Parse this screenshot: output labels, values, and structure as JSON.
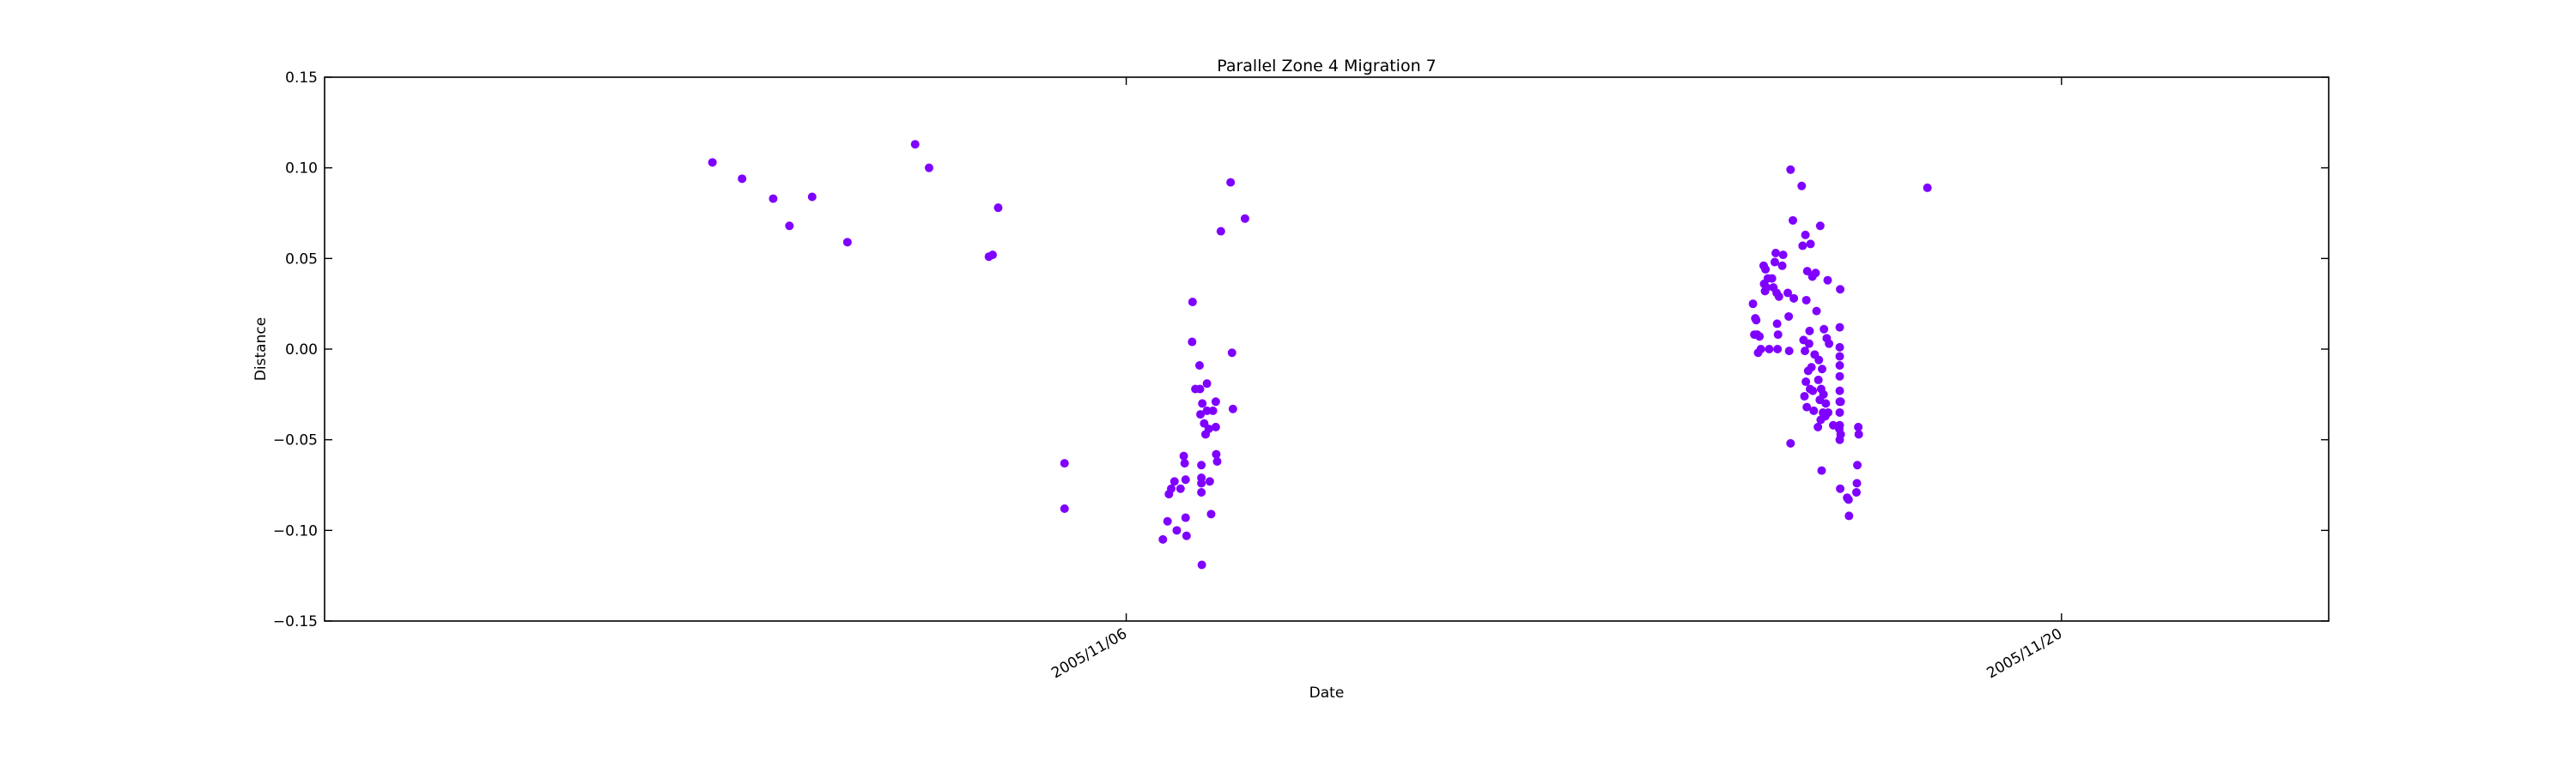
{
  "chart_data": {
    "type": "scatter",
    "title": "Parallel Zone 4 Migration 7",
    "xlabel": "Date",
    "ylabel": "Distance",
    "xlim": [
      "2005-10-25T00:00",
      "2005-11-24T00:00"
    ],
    "ylim": [
      -0.15,
      0.15
    ],
    "yticks": [
      -0.15,
      -0.1,
      -0.05,
      0.0,
      0.05,
      0.1,
      0.15
    ],
    "ytick_labels": [
      "−0.15",
      "−0.10",
      "−0.05",
      "0.00",
      "0.05",
      "0.10",
      "0.15"
    ],
    "xticks": [
      {
        "value": "2005-11-06T00:00",
        "label": "2005/11/06"
      },
      {
        "value": "2005-11-20T00:00",
        "label": "2005/11/20"
      }
    ],
    "grid": false,
    "marker_color": "#7f00ff",
    "points": [
      {
        "x": "2005-10-30T19:20",
        "y": 0.103
      },
      {
        "x": "2005-10-31T06:00",
        "y": 0.094
      },
      {
        "x": "2005-10-31T17:10",
        "y": 0.083
      },
      {
        "x": "2005-10-31T23:00",
        "y": 0.068
      },
      {
        "x": "2005-11-01T07:10",
        "y": 0.084
      },
      {
        "x": "2005-11-01T19:50",
        "y": 0.059
      },
      {
        "x": "2005-11-02T20:10",
        "y": 0.113
      },
      {
        "x": "2005-11-03T01:10",
        "y": 0.1
      },
      {
        "x": "2005-11-03T22:40",
        "y": 0.051
      },
      {
        "x": "2005-11-04T00:00",
        "y": 0.052
      },
      {
        "x": "2005-11-04T02:00",
        "y": 0.078
      },
      {
        "x": "2005-11-05T01:50",
        "y": -0.063
      },
      {
        "x": "2005-11-05T01:50",
        "y": -0.088
      },
      {
        "x": "2005-11-06T13:10",
        "y": -0.105
      },
      {
        "x": "2005-11-06T14:50",
        "y": -0.095
      },
      {
        "x": "2005-11-06T15:20",
        "y": -0.08
      },
      {
        "x": "2005-11-06T16:10",
        "y": -0.077
      },
      {
        "x": "2005-11-06T17:20",
        "y": -0.073
      },
      {
        "x": "2005-11-06T18:10",
        "y": -0.1
      },
      {
        "x": "2005-11-06T19:30",
        "y": -0.077
      },
      {
        "x": "2005-11-06T20:40",
        "y": -0.059
      },
      {
        "x": "2005-11-06T21:00",
        "y": -0.063
      },
      {
        "x": "2005-11-06T21:20",
        "y": -0.072
      },
      {
        "x": "2005-11-06T21:20",
        "y": -0.093
      },
      {
        "x": "2005-11-06T21:40",
        "y": -0.103
      },
      {
        "x": "2005-11-06T23:40",
        "y": 0.004
      },
      {
        "x": "2005-11-06T23:50",
        "y": 0.026
      },
      {
        "x": "2005-11-07T00:50",
        "y": -0.022
      },
      {
        "x": "2005-11-07T02:20",
        "y": -0.009
      },
      {
        "x": "2005-11-07T02:30",
        "y": -0.022
      },
      {
        "x": "2005-11-07T02:40",
        "y": -0.036
      },
      {
        "x": "2005-11-07T03:00",
        "y": -0.064
      },
      {
        "x": "2005-11-07T03:00",
        "y": -0.071
      },
      {
        "x": "2005-11-07T03:00",
        "y": -0.074
      },
      {
        "x": "2005-11-07T03:00",
        "y": -0.079
      },
      {
        "x": "2005-11-07T03:10",
        "y": -0.119
      },
      {
        "x": "2005-11-07T03:20",
        "y": -0.03
      },
      {
        "x": "2005-11-07T04:00",
        "y": -0.041
      },
      {
        "x": "2005-11-07T04:30",
        "y": -0.047
      },
      {
        "x": "2005-11-07T05:00",
        "y": -0.019
      },
      {
        "x": "2005-11-07T05:00",
        "y": -0.034
      },
      {
        "x": "2005-11-07T05:40",
        "y": -0.044
      },
      {
        "x": "2005-11-07T06:00",
        "y": -0.073
      },
      {
        "x": "2005-11-07T06:30",
        "y": -0.091
      },
      {
        "x": "2005-11-07T07:10",
        "y": -0.034
      },
      {
        "x": "2005-11-07T08:10",
        "y": -0.029
      },
      {
        "x": "2005-11-07T08:10",
        "y": -0.043
      },
      {
        "x": "2005-11-07T08:20",
        "y": -0.058
      },
      {
        "x": "2005-11-07T08:40",
        "y": -0.062
      },
      {
        "x": "2005-11-07T10:00",
        "y": 0.065
      },
      {
        "x": "2005-11-07T13:30",
        "y": 0.092
      },
      {
        "x": "2005-11-07T14:00",
        "y": -0.002
      },
      {
        "x": "2005-11-07T14:20",
        "y": -0.033
      },
      {
        "x": "2005-11-07T18:40",
        "y": 0.072
      },
      {
        "x": "2005-11-15T09:10",
        "y": 0.025
      },
      {
        "x": "2005-11-15T09:40",
        "y": 0.008
      },
      {
        "x": "2005-11-15T10:00",
        "y": 0.017
      },
      {
        "x": "2005-11-15T10:20",
        "y": 0.016
      },
      {
        "x": "2005-11-15T10:40",
        "y": 0.008
      },
      {
        "x": "2005-11-15T11:00",
        "y": -0.002
      },
      {
        "x": "2005-11-15T11:30",
        "y": 0.007
      },
      {
        "x": "2005-11-15T12:00",
        "y": 0.0
      },
      {
        "x": "2005-11-15T13:00",
        "y": 0.046
      },
      {
        "x": "2005-11-15T13:10",
        "y": 0.036
      },
      {
        "x": "2005-11-15T13:30",
        "y": 0.032
      },
      {
        "x": "2005-11-15T13:40",
        "y": 0.044
      },
      {
        "x": "2005-11-15T14:00",
        "y": 0.034
      },
      {
        "x": "2005-11-15T14:30",
        "y": 0.039
      },
      {
        "x": "2005-11-15T15:00",
        "y": 0.0
      },
      {
        "x": "2005-11-15T16:00",
        "y": 0.039
      },
      {
        "x": "2005-11-15T16:30",
        "y": 0.034
      },
      {
        "x": "2005-11-15T17:00",
        "y": 0.048
      },
      {
        "x": "2005-11-15T17:20",
        "y": 0.053
      },
      {
        "x": "2005-11-15T17:40",
        "y": 0.031
      },
      {
        "x": "2005-11-15T17:50",
        "y": 0.014
      },
      {
        "x": "2005-11-15T18:00",
        "y": 0.0
      },
      {
        "x": "2005-11-15T18:10",
        "y": 0.008
      },
      {
        "x": "2005-11-15T18:30",
        "y": 0.029
      },
      {
        "x": "2005-11-15T19:40",
        "y": 0.046
      },
      {
        "x": "2005-11-15T20:00",
        "y": 0.052
      },
      {
        "x": "2005-11-15T21:40",
        "y": 0.031
      },
      {
        "x": "2005-11-15T22:00",
        "y": 0.018
      },
      {
        "x": "2005-11-15T22:10",
        "y": -0.001
      },
      {
        "x": "2005-11-15T22:40",
        "y": -0.052
      },
      {
        "x": "2005-11-15T22:40",
        "y": 0.099
      },
      {
        "x": "2005-11-15T23:30",
        "y": 0.071
      },
      {
        "x": "2005-11-15T23:50",
        "y": 0.028
      },
      {
        "x": "2005-11-16T02:40",
        "y": 0.09
      },
      {
        "x": "2005-11-16T03:00",
        "y": 0.057
      },
      {
        "x": "2005-11-16T03:20",
        "y": 0.005
      },
      {
        "x": "2005-11-16T03:40",
        "y": -0.026
      },
      {
        "x": "2005-11-16T03:50",
        "y": -0.001
      },
      {
        "x": "2005-11-16T04:00",
        "y": 0.063
      },
      {
        "x": "2005-11-16T04:10",
        "y": -0.018
      },
      {
        "x": "2005-11-16T04:20",
        "y": 0.027
      },
      {
        "x": "2005-11-16T04:30",
        "y": -0.032
      },
      {
        "x": "2005-11-16T04:40",
        "y": 0.043
      },
      {
        "x": "2005-11-16T05:00",
        "y": -0.012
      },
      {
        "x": "2005-11-16T05:20",
        "y": 0.003
      },
      {
        "x": "2005-11-16T05:30",
        "y": 0.01
      },
      {
        "x": "2005-11-16T05:40",
        "y": -0.022
      },
      {
        "x": "2005-11-16T05:50",
        "y": 0.058
      },
      {
        "x": "2005-11-16T06:10",
        "y": -0.01
      },
      {
        "x": "2005-11-16T06:30",
        "y": 0.04
      },
      {
        "x": "2005-11-16T06:40",
        "y": -0.023
      },
      {
        "x": "2005-11-16T07:00",
        "y": -0.034
      },
      {
        "x": "2005-11-16T07:20",
        "y": -0.003
      },
      {
        "x": "2005-11-16T07:40",
        "y": 0.042
      },
      {
        "x": "2005-11-16T08:00",
        "y": 0.021
      },
      {
        "x": "2005-11-16T08:30",
        "y": -0.043
      },
      {
        "x": "2005-11-16T08:40",
        "y": -0.017
      },
      {
        "x": "2005-11-16T08:50",
        "y": -0.006
      },
      {
        "x": "2005-11-16T09:10",
        "y": -0.028
      },
      {
        "x": "2005-11-16T09:20",
        "y": 0.068
      },
      {
        "x": "2005-11-16T09:30",
        "y": -0.039
      },
      {
        "x": "2005-11-16T09:40",
        "y": -0.022
      },
      {
        "x": "2005-11-16T09:50",
        "y": -0.067
      },
      {
        "x": "2005-11-16T10:00",
        "y": -0.011
      },
      {
        "x": "2005-11-16T10:20",
        "y": -0.035
      },
      {
        "x": "2005-11-16T10:30",
        "y": -0.025
      },
      {
        "x": "2005-11-16T10:40",
        "y": 0.011
      },
      {
        "x": "2005-11-16T11:10",
        "y": -0.037
      },
      {
        "x": "2005-11-16T11:20",
        "y": -0.03
      },
      {
        "x": "2005-11-16T11:40",
        "y": 0.006
      },
      {
        "x": "2005-11-16T12:00",
        "y": 0.038
      },
      {
        "x": "2005-11-16T12:10",
        "y": -0.035
      },
      {
        "x": "2005-11-16T12:30",
        "y": 0.003
      },
      {
        "x": "2005-11-16T14:00",
        "y": -0.042
      },
      {
        "x": "2005-11-16T16:10",
        "y": -0.044
      },
      {
        "x": "2005-11-16T16:20",
        "y": -0.042
      },
      {
        "x": "2005-11-16T16:20",
        "y": -0.05
      },
      {
        "x": "2005-11-16T16:20",
        "y": -0.035
      },
      {
        "x": "2005-11-16T16:20",
        "y": -0.029
      },
      {
        "x": "2005-11-16T16:20",
        "y": -0.023
      },
      {
        "x": "2005-11-16T16:20",
        "y": -0.015
      },
      {
        "x": "2005-11-16T16:20",
        "y": -0.009
      },
      {
        "x": "2005-11-16T16:20",
        "y": -0.004
      },
      {
        "x": "2005-11-16T16:20",
        "y": 0.001
      },
      {
        "x": "2005-11-16T16:20",
        "y": 0.012
      },
      {
        "x": "2005-11-16T16:30",
        "y": 0.033
      },
      {
        "x": "2005-11-16T16:30",
        "y": -0.077
      },
      {
        "x": "2005-11-16T16:40",
        "y": -0.029
      },
      {
        "x": "2005-11-16T16:40",
        "y": -0.047
      },
      {
        "x": "2005-11-16T19:00",
        "y": -0.082
      },
      {
        "x": "2005-11-16T19:30",
        "y": -0.083
      },
      {
        "x": "2005-11-16T19:40",
        "y": -0.092
      },
      {
        "x": "2005-11-16T22:20",
        "y": -0.079
      },
      {
        "x": "2005-11-16T22:30",
        "y": -0.074
      },
      {
        "x": "2005-11-16T22:40",
        "y": -0.064
      },
      {
        "x": "2005-11-16T23:00",
        "y": -0.043
      },
      {
        "x": "2005-11-16T23:10",
        "y": -0.047
      },
      {
        "x": "2005-11-17T23:50",
        "y": 0.089
      }
    ]
  }
}
